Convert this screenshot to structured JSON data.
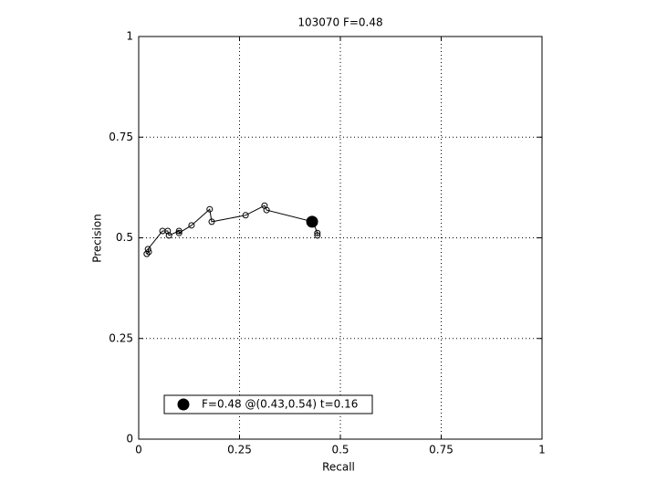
{
  "chart_data": {
    "type": "line",
    "title": "103070 F=0.48",
    "x_label": "Recall",
    "y_label": "Precision",
    "xlim": [
      0,
      1
    ],
    "ylim": [
      0,
      1
    ],
    "xticks": [
      0,
      0.25,
      0.5,
      0.75,
      1
    ],
    "yticks": [
      0,
      0.25,
      0.5,
      0.75,
      1
    ],
    "grid": true,
    "legend": "lower left",
    "series": [
      {
        "color": "#000000",
        "marker": "open",
        "x": [
          0.02,
          0.025,
          0.023,
          0.059,
          0.072,
          0.075,
          0.1,
          0.1,
          0.131,
          0.176,
          0.181,
          0.265,
          0.312,
          0.317,
          0.432,
          0.443,
          0.443
        ],
        "values": [
          0.46,
          0.465,
          0.472,
          0.517,
          0.517,
          0.506,
          0.517,
          0.512,
          0.531,
          0.571,
          0.54,
          0.556,
          0.58,
          0.569,
          0.54,
          0.512,
          0.506
        ]
      },
      {
        "name": "F=0.48 @(0.43,0.54) t=0.16",
        "color": "#000000",
        "marker": "filled",
        "x": [
          0.43
        ],
        "values": [
          0.54
        ]
      }
    ]
  }
}
